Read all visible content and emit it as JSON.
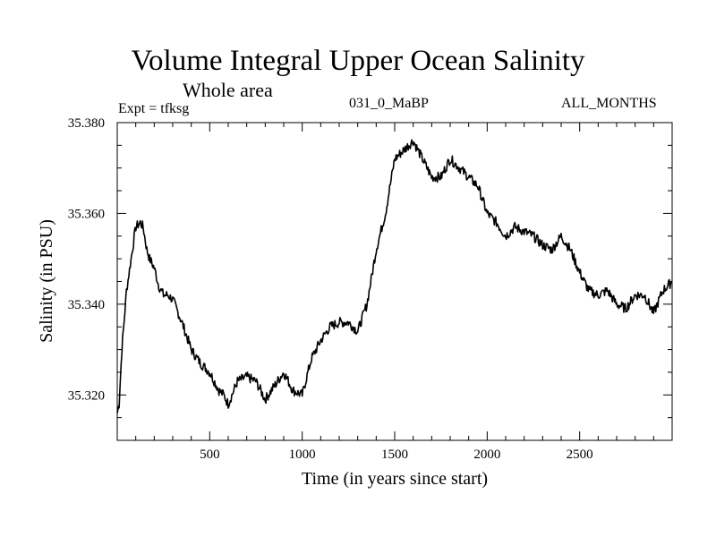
{
  "chart_data": {
    "type": "line",
    "title": "Volume Integral Upper Ocean Salinity",
    "subtitle": "Whole area",
    "experiment": "Expt = tfksg",
    "run_label": "031_0_MaBP",
    "months_label": "ALL_MONTHS",
    "xlabel": "Time (in years since start)",
    "ylabel": "Salinity (in PSU)",
    "xlim": [
      0,
      3000
    ],
    "ylim": [
      35.31,
      35.38
    ],
    "x_ticks": [
      500,
      1000,
      1500,
      2000,
      2500
    ],
    "x_tick_labels": [
      "500",
      "1000",
      "1500",
      "2000",
      "2500"
    ],
    "y_ticks": [
      35.32,
      35.34,
      35.36,
      35.38
    ],
    "y_tick_labels": [
      "35.320",
      "35.340",
      "35.360",
      "35.380"
    ],
    "series": [
      {
        "name": "salinity",
        "x": [
          0,
          10,
          25,
          50,
          75,
          100,
          125,
          140,
          160,
          175,
          200,
          225,
          250,
          275,
          300,
          350,
          400,
          450,
          500,
          550,
          575,
          600,
          650,
          700,
          750,
          800,
          850,
          900,
          950,
          1000,
          1050,
          1100,
          1150,
          1200,
          1250,
          1300,
          1350,
          1400,
          1450,
          1500,
          1550,
          1600,
          1650,
          1700,
          1750,
          1800,
          1850,
          1900,
          1950,
          2000,
          2050,
          2100,
          2150,
          2200,
          2250,
          2300,
          2350,
          2400,
          2450,
          2500,
          2550,
          2600,
          2650,
          2700,
          2750,
          2800,
          2850,
          2900,
          2950,
          3000
        ],
        "values": [
          35.316,
          35.318,
          35.33,
          35.343,
          35.35,
          35.357,
          35.358,
          35.357,
          35.352,
          35.35,
          35.348,
          35.344,
          35.342,
          35.342,
          35.341,
          35.336,
          35.33,
          35.327,
          35.325,
          35.321,
          35.32,
          35.318,
          35.323,
          35.324,
          35.323,
          35.319,
          35.322,
          35.325,
          35.321,
          35.32,
          35.328,
          35.332,
          35.335,
          35.336,
          35.336,
          35.334,
          35.34,
          35.352,
          35.36,
          35.372,
          35.374,
          35.376,
          35.372,
          35.368,
          35.368,
          35.372,
          35.37,
          35.368,
          35.366,
          35.36,
          35.358,
          35.355,
          35.357,
          35.356,
          35.355,
          35.353,
          35.352,
          35.355,
          35.352,
          35.347,
          35.343,
          35.342,
          35.343,
          35.34,
          35.339,
          35.342,
          35.342,
          35.338,
          35.343,
          35.345
        ]
      }
    ]
  }
}
